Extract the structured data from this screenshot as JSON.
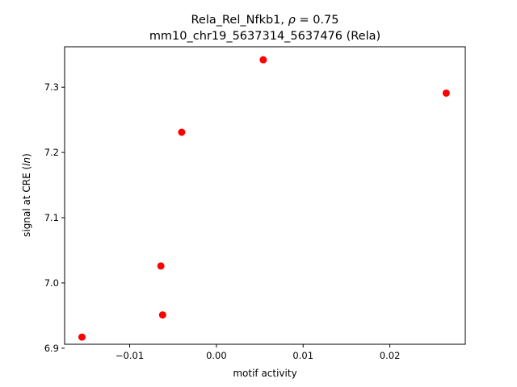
{
  "chart_data": {
    "type": "scatter",
    "title_line1_prefix": "Rela_Rel_Nfkb1, ",
    "title_rho_symbol": "ρ",
    "title_rho_value": " = 0.75",
    "title_line2": "mm10_chr19_5637314_5637476 (Rela)",
    "xlabel": "motif activity",
    "ylabel_prefix": "signal at CRE (",
    "ylabel_italic": "ln",
    "ylabel_suffix": ")",
    "xlim": [
      -0.0175,
      0.0287
    ],
    "ylim": [
      6.906,
      7.362
    ],
    "xticks": [
      -0.01,
      0.0,
      0.01,
      0.02
    ],
    "xtick_labels": [
      "−0.01",
      "0.00",
      "0.01",
      "0.02"
    ],
    "yticks": [
      6.9,
      7.0,
      7.1,
      7.2,
      7.3
    ],
    "ytick_labels": [
      "6.9",
      "7.0",
      "7.1",
      "7.2",
      "7.3"
    ],
    "marker_color": "#ff0000",
    "points": [
      {
        "x": -0.0155,
        "y": 6.917
      },
      {
        "x": -0.0062,
        "y": 6.951
      },
      {
        "x": -0.0064,
        "y": 7.026
      },
      {
        "x": -0.004,
        "y": 7.231
      },
      {
        "x": 0.0054,
        "y": 7.342
      },
      {
        "x": 0.0265,
        "y": 7.291
      }
    ]
  }
}
